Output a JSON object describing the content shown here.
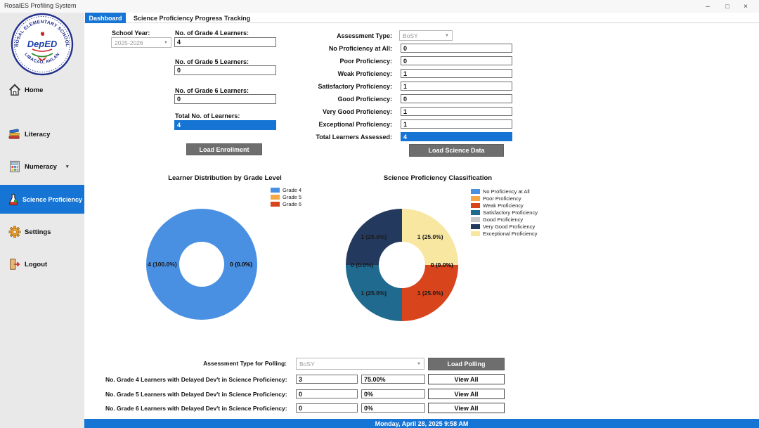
{
  "window": {
    "title": "RosalES Profiling System",
    "controls": {
      "minimize": "–",
      "maximize": "□",
      "close": "×"
    }
  },
  "sidebar": {
    "logo": {
      "school": "ROSAL ELEMENTARY SCHOOL",
      "location": "LIBACAO, AKLAN",
      "center": "DepED"
    },
    "items": [
      {
        "label": "Home"
      },
      {
        "label": "Literacy"
      },
      {
        "label": "Numeracy",
        "caret": "▾"
      },
      {
        "label": "Science Proficiency",
        "selected": true
      },
      {
        "label": "Settings"
      },
      {
        "label": "Logout"
      }
    ]
  },
  "tabs": [
    {
      "label": "Dashboard",
      "selected": true
    },
    {
      "label": "Science Proficiency Progress Tracking",
      "selected": false
    }
  ],
  "enrollment": {
    "school_year_label": "School Year:",
    "school_year_value": "2025-2026",
    "grade4_label": "No. of Grade 4 Learners:",
    "grade4_value": "4",
    "grade5_label": "No. of Grade 5 Learners:",
    "grade5_value": "0",
    "grade6_label": "No. of Grade 6 Learners:",
    "grade6_value": "0",
    "total_label": "Total No. of Learners:",
    "total_value": "4",
    "load_button": "Load Enrollment"
  },
  "assessment": {
    "type_label": "Assessment Type:",
    "type_value": "BoSY",
    "fields": [
      {
        "label": "No Proficiency at All:",
        "value": "0"
      },
      {
        "label": "Poor Proficiency:",
        "value": "0"
      },
      {
        "label": "Weak Proficiency:",
        "value": "1"
      },
      {
        "label": "Satisfactory Proficiency:",
        "value": "1"
      },
      {
        "label": "Good Proficiency:",
        "value": "0"
      },
      {
        "label": "Very Good Proficiency:",
        "value": "1"
      },
      {
        "label": "Exceptional Proficiency:",
        "value": "1"
      },
      {
        "label": "Total Learners Assessed:",
        "value": "4"
      }
    ],
    "load_button": "Load Science Data"
  },
  "chart_data": [
    {
      "type": "donut",
      "title": "Learner Distribution by Grade Level",
      "categories": [
        "Grade 4",
        "Grade 5",
        "Grade 6"
      ],
      "values": [
        4,
        0,
        0
      ],
      "colors": [
        "#4a90e2",
        "#f5a844",
        "#d8441c"
      ],
      "slice_labels": [
        "4 (100.0%)",
        "0 (0.0%)",
        "0 (0.0%)"
      ],
      "legend_position": "top-right",
      "start_angle": "3-o'clock-clockwise"
    },
    {
      "type": "donut",
      "title": "Science Proficiency Classification",
      "categories": [
        "No Proficiency at All",
        "Poor Proficiency",
        "Weak Proficiency",
        "Satisfactory Proficiency",
        "Good Proficiency",
        "Very Good Proficiency",
        "Exceptional Proficiency"
      ],
      "values": [
        0,
        0,
        1,
        1,
        0,
        1,
        1
      ],
      "colors": [
        "#4a90e2",
        "#f5a844",
        "#d8441c",
        "#20698f",
        "#c9c9c9",
        "#24395e",
        "#f7e7a0"
      ],
      "slice_labels": [
        "0 (0.0%)",
        "0 (0.0%)",
        "1 (25.0%)",
        "1 (25.0%)",
        "0 (0.0%)",
        "1 (25.0%)",
        "1 (25.0%)"
      ],
      "legend_position": "top-right",
      "start_angle": "3-o'clock-clockwise"
    }
  ],
  "polling": {
    "type_label": "Assessment Type for Polling:",
    "type_value": "BoSY",
    "load_button": "Load Polling",
    "rows": [
      {
        "label": "No. Grade 4 Learners with Delayed Dev't in Science Proficiency:",
        "count": "3",
        "percent": "75.00%",
        "button": "View All"
      },
      {
        "label": "No. Grade 5 Learners with Delayed Dev't in Science Proficiency:",
        "count": "0",
        "percent": "0%",
        "button": "View All"
      },
      {
        "label": "No. Grade 6 Learners with Delayed Dev't in Science Proficiency:",
        "count": "0",
        "percent": "0%",
        "button": "View All"
      }
    ]
  },
  "statusbar": {
    "datetime": "Monday, April 28, 2025 9:58 AM"
  },
  "colors": {
    "accent": "#1574d4",
    "button_gray": "#6e6e6e",
    "sidebar_bg": "#e9e9e9"
  }
}
